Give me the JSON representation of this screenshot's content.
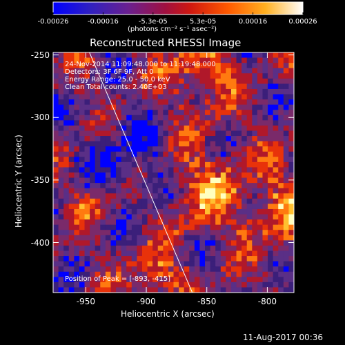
{
  "colorbar": {
    "ticks": [
      "-0.00026",
      "-0.00016",
      "-5.3e-05",
      "5.3e-05",
      "0.00016",
      "0.00026"
    ],
    "unit_label": "(photons cm⁻² s⁻¹ asec⁻²)",
    "range": [
      -0.00026,
      0.00026
    ]
  },
  "chart_data": {
    "type": "heatmap",
    "title": "Reconstructed RHESSI Image",
    "xlabel": "Heliocentric X (arcsec)",
    "ylabel": "Heliocentric Y (arcsec)",
    "xlim": [
      -977,
      -778
    ],
    "ylim": [
      -440,
      -248
    ],
    "x_ticks": [
      "-950",
      "-900",
      "-850",
      "-800"
    ],
    "x_tick_values": [
      -950,
      -900,
      -850,
      -800
    ],
    "y_ticks": [
      "-250",
      "-300",
      "-350",
      "-400"
    ],
    "y_tick_values": [
      -250,
      -300,
      -350,
      -400
    ],
    "colormap": [
      "#0000ff",
      "#3b1f7a",
      "#5a2f86",
      "#7a2a6a",
      "#b0182a",
      "#e8320a",
      "#ff7a10",
      "#ffc030",
      "#ffffc0"
    ],
    "annotations": {
      "time_range": "24-Nov-2014 11:09:48.000 to 11:19:48.000",
      "detectors": "Detectors: 3F 6F 9F, Att 0",
      "energy": "Energy Range: 25.0 - 50.0 keV",
      "clean": "Clean    Total counts: 2.40E+03",
      "peak": "Position of Peak = [-893, -415]"
    },
    "limb_line": [
      [
        -947,
        -248
      ],
      [
        -862,
        -440
      ]
    ],
    "peak": [
      -893,
      -415
    ]
  },
  "timestamp": "11-Aug-2017 00:36"
}
